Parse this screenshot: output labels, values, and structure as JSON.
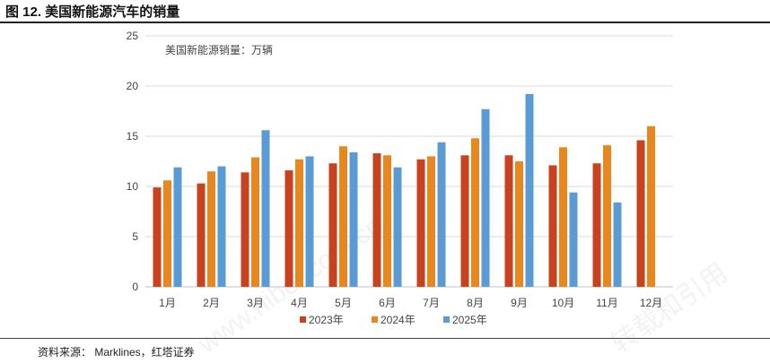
{
  "figure": {
    "title": "图 12. 美国新能源汽车的销量",
    "source": "资料来源： Marklines，红塔证券",
    "watermarks": [
      "www.hibor.com.cn",
      "转载和引用"
    ]
  },
  "chart_data": {
    "type": "bar",
    "title": "美国新能源销量：万辆",
    "categories": [
      "1月",
      "2月",
      "3月",
      "4月",
      "5月",
      "6月",
      "7月",
      "8月",
      "9月",
      "10月",
      "11月",
      "12月"
    ],
    "series": [
      {
        "name": "2023年",
        "color": "#C9421F",
        "values": [
          9.9,
          10.3,
          11.4,
          11.6,
          12.3,
          13.3,
          12.7,
          13.1,
          13.1,
          12.1,
          12.3,
          14.6
        ]
      },
      {
        "name": "2024年",
        "color": "#E8871E",
        "values": [
          10.6,
          11.5,
          12.9,
          12.7,
          14.0,
          13.1,
          13.0,
          14.8,
          12.5,
          13.9,
          14.1,
          16.0
        ]
      },
      {
        "name": "2025年",
        "color": "#5B9BD5",
        "values": [
          11.9,
          12.0,
          15.6,
          13.0,
          13.4,
          11.9,
          14.4,
          17.7,
          19.2,
          9.4,
          8.4,
          null
        ]
      }
    ],
    "ylim": [
      0,
      25
    ],
    "yticks": [
      0,
      5,
      10,
      15,
      20,
      25
    ],
    "xlabel": "",
    "ylabel": "",
    "grid": true,
    "legend_position": "bottom"
  }
}
